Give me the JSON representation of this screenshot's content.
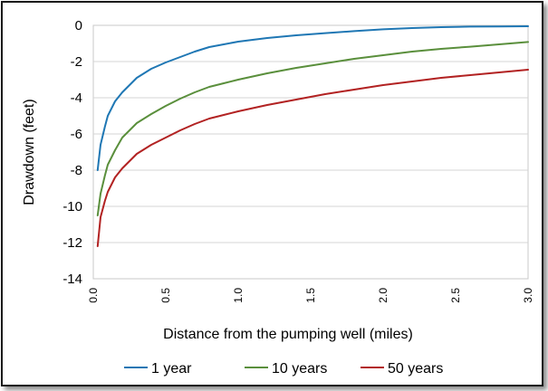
{
  "chart_data": {
    "type": "line",
    "title": "",
    "xlabel": "Distance from the pumping well (miles)",
    "ylabel": "Drawdown  (feet)",
    "xlim": [
      0,
      3.0
    ],
    "ylim": [
      -14,
      0
    ],
    "x_ticks": [
      "0.0",
      "0.5",
      "1.0",
      "1.5",
      "2.0",
      "2.5",
      "3.0"
    ],
    "y_ticks": [
      "0",
      "-2",
      "-4",
      "-6",
      "-8",
      "-10",
      "-12",
      "-14"
    ],
    "grid": "horizontal",
    "legend_position": "bottom",
    "series": [
      {
        "name": "1 year",
        "color": "#1f77b4",
        "points": [
          [
            0.03,
            -8.0
          ],
          [
            0.05,
            -6.6
          ],
          [
            0.08,
            -5.6
          ],
          [
            0.1,
            -5.0
          ],
          [
            0.15,
            -4.2
          ],
          [
            0.2,
            -3.7
          ],
          [
            0.3,
            -2.9
          ],
          [
            0.4,
            -2.4
          ],
          [
            0.5,
            -2.05
          ],
          [
            0.6,
            -1.75
          ],
          [
            0.7,
            -1.45
          ],
          [
            0.8,
            -1.2
          ],
          [
            0.9,
            -1.05
          ],
          [
            1.0,
            -0.9
          ],
          [
            1.2,
            -0.7
          ],
          [
            1.4,
            -0.55
          ],
          [
            1.6,
            -0.43
          ],
          [
            1.8,
            -0.32
          ],
          [
            2.0,
            -0.22
          ],
          [
            2.2,
            -0.15
          ],
          [
            2.4,
            -0.1
          ],
          [
            2.6,
            -0.07
          ],
          [
            2.8,
            -0.06
          ],
          [
            3.0,
            -0.05
          ]
        ]
      },
      {
        "name": "10 years",
        "color": "#5a8f3c",
        "points": [
          [
            0.03,
            -10.5
          ],
          [
            0.05,
            -9.3
          ],
          [
            0.08,
            -8.3
          ],
          [
            0.1,
            -7.7
          ],
          [
            0.15,
            -6.9
          ],
          [
            0.2,
            -6.2
          ],
          [
            0.3,
            -5.4
          ],
          [
            0.4,
            -4.9
          ],
          [
            0.5,
            -4.45
          ],
          [
            0.6,
            -4.05
          ],
          [
            0.7,
            -3.7
          ],
          [
            0.8,
            -3.4
          ],
          [
            0.9,
            -3.2
          ],
          [
            1.0,
            -3.0
          ],
          [
            1.2,
            -2.65
          ],
          [
            1.4,
            -2.35
          ],
          [
            1.6,
            -2.1
          ],
          [
            1.8,
            -1.85
          ],
          [
            2.0,
            -1.65
          ],
          [
            2.2,
            -1.45
          ],
          [
            2.4,
            -1.3
          ],
          [
            2.6,
            -1.18
          ],
          [
            2.8,
            -1.05
          ],
          [
            3.0,
            -0.92
          ]
        ]
      },
      {
        "name": "50 years",
        "color": "#b22222",
        "points": [
          [
            0.03,
            -12.2
          ],
          [
            0.05,
            -10.6
          ],
          [
            0.08,
            -9.7
          ],
          [
            0.1,
            -9.2
          ],
          [
            0.15,
            -8.4
          ],
          [
            0.2,
            -7.9
          ],
          [
            0.3,
            -7.1
          ],
          [
            0.4,
            -6.6
          ],
          [
            0.5,
            -6.2
          ],
          [
            0.6,
            -5.8
          ],
          [
            0.7,
            -5.45
          ],
          [
            0.8,
            -5.15
          ],
          [
            0.9,
            -4.95
          ],
          [
            1.0,
            -4.75
          ],
          [
            1.2,
            -4.4
          ],
          [
            1.4,
            -4.1
          ],
          [
            1.6,
            -3.8
          ],
          [
            1.8,
            -3.55
          ],
          [
            2.0,
            -3.3
          ],
          [
            2.2,
            -3.1
          ],
          [
            2.4,
            -2.9
          ],
          [
            2.6,
            -2.75
          ],
          [
            2.8,
            -2.6
          ],
          [
            3.0,
            -2.45
          ]
        ]
      }
    ]
  }
}
